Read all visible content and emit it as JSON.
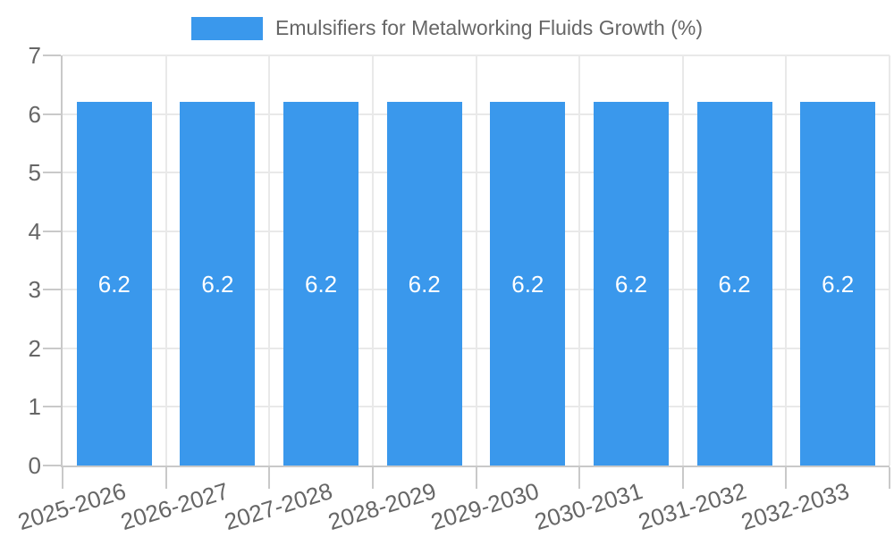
{
  "chart_data": {
    "type": "bar",
    "legend": {
      "label": "Emulsifiers for Metalworking Fluids Growth (%)",
      "position": "top"
    },
    "categories": [
      "2025-2026",
      "2026-2027",
      "2027-2028",
      "2028-2029",
      "2029-2030",
      "2030-2031",
      "2031-2032",
      "2032-2033"
    ],
    "series": [
      {
        "name": "Emulsifiers for Metalworking Fluids Growth (%)",
        "values": [
          6.2,
          6.2,
          6.2,
          6.2,
          6.2,
          6.2,
          6.2,
          6.2
        ]
      }
    ],
    "value_labels": [
      "6.2",
      "6.2",
      "6.2",
      "6.2",
      "6.2",
      "6.2",
      "6.2",
      "6.2"
    ],
    "xlabel": "",
    "ylabel": "",
    "ylim": [
      0,
      7
    ],
    "yticks": [
      0,
      1,
      2,
      3,
      4,
      5,
      6,
      7
    ],
    "ytick_labels": [
      "0",
      "1",
      "2",
      "3",
      "4",
      "5",
      "6",
      "7"
    ],
    "grid": true,
    "colors": {
      "bar": "#3A98EC",
      "grid": "#E9E9E9",
      "axis": "#C9C9C9",
      "tick_text": "#666666",
      "bar_label": "#FFFFFF",
      "legend_text": "#666666"
    }
  }
}
